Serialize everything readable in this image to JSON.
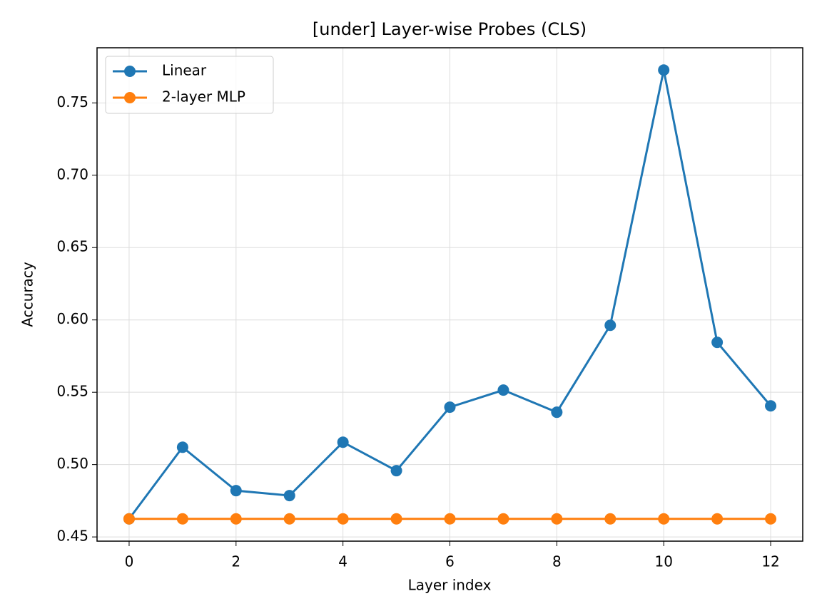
{
  "chart_data": {
    "type": "line",
    "title": "[under] Layer-wise Probes (CLS)",
    "x_label": "Layer index",
    "y_label": "Accuracy",
    "x": [
      0,
      1,
      2,
      3,
      4,
      5,
      6,
      7,
      8,
      9,
      10,
      11,
      12
    ],
    "series": [
      {
        "name": "Linear",
        "color": "#1f77b4",
        "values": [
          0.4625,
          0.512,
          0.482,
          0.4786,
          0.5155,
          0.4958,
          0.5397,
          0.5515,
          0.5362,
          0.5963,
          0.7727,
          0.5845,
          0.5406
        ]
      },
      {
        "name": "2-layer MLP",
        "color": "#ff7f0e",
        "values": [
          0.4625,
          0.4625,
          0.4625,
          0.4625,
          0.4625,
          0.4625,
          0.4625,
          0.4625,
          0.4625,
          0.4625,
          0.4625,
          0.4625,
          0.4625
        ]
      }
    ],
    "xlim": [
      -0.6,
      12.6
    ],
    "xticks": [
      0,
      2,
      4,
      6,
      8,
      10,
      12
    ],
    "ylim": [
      0.4471,
      0.7881
    ],
    "yticks": [
      0.45,
      {
        "value": 0.5,
        "label": "0.50"
      },
      0.55,
      {
        "value": 0.6,
        "label": "0.60"
      },
      0.65,
      {
        "value": 0.7,
        "label": "0.70"
      },
      0.75
    ],
    "grid": true,
    "legend": "upper left"
  }
}
